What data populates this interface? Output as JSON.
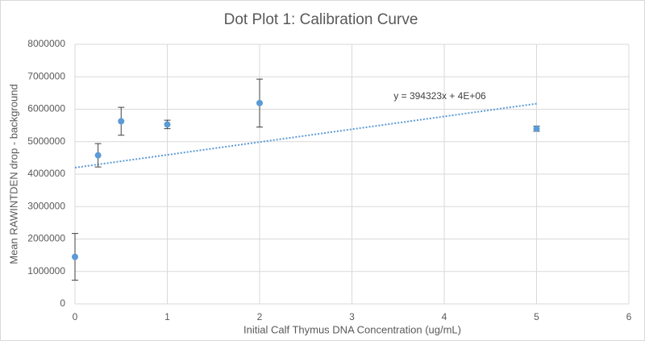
{
  "chart_data": {
    "type": "scatter",
    "title": "Dot Plot 1: Calibration Curve",
    "x_label": "Initial Calf Thymus DNA Concentration (ug/mL)",
    "y_label": "Mean RAWINTDEN drop - background",
    "x": [
      0,
      0.25,
      0.5,
      1,
      2,
      5
    ],
    "values": [
      1450000,
      4580000,
      5630000,
      5530000,
      6190000,
      5400000
    ],
    "errors": [
      720000,
      360000,
      430000,
      130000,
      740000,
      80000
    ],
    "color": "#5b9bd5",
    "trendline": {
      "label": "y = 394323x + 4E+06",
      "slope": 394323,
      "intercept": 4200000
    },
    "xlim": [
      0,
      6
    ],
    "xticks": [
      0,
      1,
      2,
      3,
      4,
      5,
      6
    ],
    "ylim": [
      0,
      8000000
    ],
    "yticks": [
      0,
      1000000,
      2000000,
      3000000,
      4000000,
      5000000,
      6000000,
      7000000,
      8000000
    ],
    "grid": true
  }
}
